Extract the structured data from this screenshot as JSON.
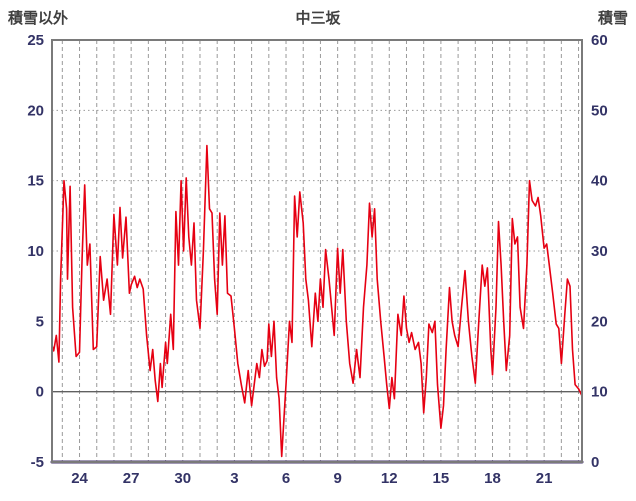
{
  "title": "中三坂",
  "left_axis_label": "積雪以外",
  "right_axis_label": "積雪",
  "colors": {
    "line": "#e60012",
    "snow_line": "#43306c",
    "grid": "#9a9a9a",
    "zero_line": "#606060",
    "frame": "#7a7a7a",
    "tick_text": "#333366",
    "label_text": "#404040",
    "background": "#ffffff"
  },
  "chart_data": {
    "type": "line",
    "title": "中三坂",
    "left_ylabel": "積雪以外",
    "right_ylabel": "積雪",
    "left_ylim": [
      -5,
      25
    ],
    "right_ylim": [
      0,
      60
    ],
    "left_yticks": [
      25,
      20,
      15,
      10,
      5,
      0,
      -5
    ],
    "right_yticks": [
      60,
      50,
      40,
      30,
      20,
      10,
      0
    ],
    "x_tick_labels": [
      "24",
      "27",
      "30",
      "3",
      "6",
      "9",
      "12",
      "15",
      "18",
      "21"
    ],
    "x_tick_positions": [
      24,
      27,
      30,
      33,
      36,
      39,
      42,
      45,
      48,
      51
    ],
    "xlim": [
      22.4,
      53.2
    ],
    "grid": true,
    "series": [
      {
        "name": "積雪以外",
        "axis": "left",
        "color": "#e60012",
        "width": 1.6,
        "points": [
          [
            22.4,
            3.3
          ],
          [
            22.5,
            2.9
          ],
          [
            22.65,
            4.0
          ],
          [
            22.8,
            2.1
          ],
          [
            22.9,
            8.0
          ],
          [
            23.1,
            15.0
          ],
          [
            23.25,
            13.0
          ],
          [
            23.3,
            8.0
          ],
          [
            23.45,
            14.6
          ],
          [
            23.6,
            6.0
          ],
          [
            23.8,
            2.5
          ],
          [
            24.0,
            2.8
          ],
          [
            24.15,
            9.5
          ],
          [
            24.3,
            14.7
          ],
          [
            24.45,
            9.0
          ],
          [
            24.6,
            10.5
          ],
          [
            24.8,
            3.0
          ],
          [
            25.0,
            3.2
          ],
          [
            25.2,
            9.6
          ],
          [
            25.4,
            6.5
          ],
          [
            25.6,
            8.0
          ],
          [
            25.8,
            5.5
          ],
          [
            26.0,
            12.6
          ],
          [
            26.2,
            9.0
          ],
          [
            26.35,
            13.1
          ],
          [
            26.5,
            9.5
          ],
          [
            26.7,
            12.4
          ],
          [
            26.9,
            7.0
          ],
          [
            27.0,
            7.6
          ],
          [
            27.2,
            8.2
          ],
          [
            27.35,
            7.4
          ],
          [
            27.5,
            8.0
          ],
          [
            27.7,
            7.3
          ],
          [
            27.9,
            4.0
          ],
          [
            28.1,
            1.5
          ],
          [
            28.25,
            3.0
          ],
          [
            28.4,
            0.8
          ],
          [
            28.55,
            -0.7
          ],
          [
            28.7,
            2.0
          ],
          [
            28.8,
            0.3
          ],
          [
            29.0,
            3.5
          ],
          [
            29.1,
            2.0
          ],
          [
            29.3,
            5.5
          ],
          [
            29.45,
            3.0
          ],
          [
            29.6,
            12.8
          ],
          [
            29.75,
            9.0
          ],
          [
            29.9,
            15.0
          ],
          [
            30.05,
            10.0
          ],
          [
            30.2,
            15.2
          ],
          [
            30.35,
            11.0
          ],
          [
            30.5,
            9.0
          ],
          [
            30.65,
            12.0
          ],
          [
            30.8,
            6.5
          ],
          [
            31.0,
            4.5
          ],
          [
            31.2,
            10.0
          ],
          [
            31.4,
            17.5
          ],
          [
            31.55,
            13.0
          ],
          [
            31.7,
            12.7
          ],
          [
            31.85,
            8.0
          ],
          [
            32.0,
            5.5
          ],
          [
            32.15,
            12.7
          ],
          [
            32.3,
            9.0
          ],
          [
            32.45,
            12.5
          ],
          [
            32.6,
            7.0
          ],
          [
            32.8,
            6.8
          ],
          [
            33.0,
            4.5
          ],
          [
            33.2,
            2.0
          ],
          [
            33.4,
            0.5
          ],
          [
            33.6,
            -0.8
          ],
          [
            33.8,
            1.5
          ],
          [
            34.0,
            -1.0
          ],
          [
            34.15,
            0.5
          ],
          [
            34.3,
            2.0
          ],
          [
            34.45,
            1.0
          ],
          [
            34.6,
            3.0
          ],
          [
            34.75,
            1.8
          ],
          [
            34.9,
            2.2
          ],
          [
            35.0,
            4.8
          ],
          [
            35.15,
            2.5
          ],
          [
            35.3,
            5.0
          ],
          [
            35.45,
            1.0
          ],
          [
            35.6,
            -0.5
          ],
          [
            35.75,
            -4.6
          ],
          [
            35.9,
            -1.5
          ],
          [
            36.0,
            0.5
          ],
          [
            36.2,
            5.0
          ],
          [
            36.35,
            3.5
          ],
          [
            36.5,
            13.9
          ],
          [
            36.65,
            11.0
          ],
          [
            36.8,
            14.2
          ],
          [
            37.0,
            12.0
          ],
          [
            37.15,
            8.0
          ],
          [
            37.3,
            6.5
          ],
          [
            37.5,
            3.2
          ],
          [
            37.7,
            7.0
          ],
          [
            37.85,
            5.0
          ],
          [
            38.0,
            8.0
          ],
          [
            38.15,
            6.0
          ],
          [
            38.3,
            10.1
          ],
          [
            38.5,
            8.0
          ],
          [
            38.65,
            6.0
          ],
          [
            38.8,
            4.0
          ],
          [
            39.0,
            10.2
          ],
          [
            39.15,
            7.0
          ],
          [
            39.3,
            10.1
          ],
          [
            39.5,
            5.0
          ],
          [
            39.7,
            2.0
          ],
          [
            39.9,
            0.6
          ],
          [
            40.1,
            3.0
          ],
          [
            40.3,
            1.0
          ],
          [
            40.5,
            6.0
          ],
          [
            40.7,
            9.0
          ],
          [
            40.85,
            13.4
          ],
          [
            41.0,
            11.0
          ],
          [
            41.15,
            13.0
          ],
          [
            41.3,
            8.0
          ],
          [
            41.5,
            5.0
          ],
          [
            41.7,
            2.5
          ],
          [
            41.85,
            0.5
          ],
          [
            42.0,
            -1.2
          ],
          [
            42.15,
            1.0
          ],
          [
            42.3,
            -0.5
          ],
          [
            42.5,
            5.5
          ],
          [
            42.7,
            4.0
          ],
          [
            42.85,
            6.8
          ],
          [
            43.0,
            4.5
          ],
          [
            43.15,
            3.5
          ],
          [
            43.3,
            4.2
          ],
          [
            43.5,
            3.0
          ],
          [
            43.7,
            3.5
          ],
          [
            43.85,
            2.0
          ],
          [
            44.0,
            -1.5
          ],
          [
            44.15,
            1.0
          ],
          [
            44.3,
            4.8
          ],
          [
            44.5,
            4.2
          ],
          [
            44.65,
            5.0
          ],
          [
            44.8,
            0.5
          ],
          [
            45.0,
            -2.6
          ],
          [
            45.15,
            -1.0
          ],
          [
            45.3,
            3.0
          ],
          [
            45.5,
            7.4
          ],
          [
            45.65,
            5.0
          ],
          [
            45.8,
            4.0
          ],
          [
            46.0,
            3.2
          ],
          [
            46.2,
            6.0
          ],
          [
            46.4,
            8.6
          ],
          [
            46.6,
            5.0
          ],
          [
            46.8,
            2.5
          ],
          [
            47.0,
            0.6
          ],
          [
            47.2,
            5.0
          ],
          [
            47.4,
            9.0
          ],
          [
            47.55,
            7.5
          ],
          [
            47.7,
            8.8
          ],
          [
            47.9,
            3.0
          ],
          [
            48.0,
            1.2
          ],
          [
            48.2,
            6.0
          ],
          [
            48.35,
            12.1
          ],
          [
            48.5,
            9.0
          ],
          [
            48.65,
            5.0
          ],
          [
            48.8,
            1.5
          ],
          [
            49.0,
            4.0
          ],
          [
            49.15,
            12.3
          ],
          [
            49.3,
            10.5
          ],
          [
            49.45,
            11.0
          ],
          [
            49.6,
            6.0
          ],
          [
            49.8,
            4.5
          ],
          [
            50.0,
            9.0
          ],
          [
            50.15,
            15.0
          ],
          [
            50.3,
            13.6
          ],
          [
            50.5,
            13.2
          ],
          [
            50.65,
            13.8
          ],
          [
            50.8,
            12.5
          ],
          [
            51.0,
            10.2
          ],
          [
            51.15,
            10.5
          ],
          [
            51.3,
            9.0
          ],
          [
            51.5,
            7.0
          ],
          [
            51.7,
            4.8
          ],
          [
            51.85,
            4.5
          ],
          [
            52.0,
            2.0
          ],
          [
            52.2,
            5.5
          ],
          [
            52.35,
            8.0
          ],
          [
            52.5,
            7.5
          ],
          [
            52.65,
            3.0
          ],
          [
            52.8,
            0.5
          ],
          [
            53.0,
            0.2
          ],
          [
            53.2,
            -0.3
          ]
        ]
      },
      {
        "name": "積雪",
        "axis": "right",
        "color": "#43306c",
        "width": 3,
        "points": [
          [
            22.4,
            0
          ],
          [
            53.2,
            0
          ]
        ]
      }
    ]
  }
}
